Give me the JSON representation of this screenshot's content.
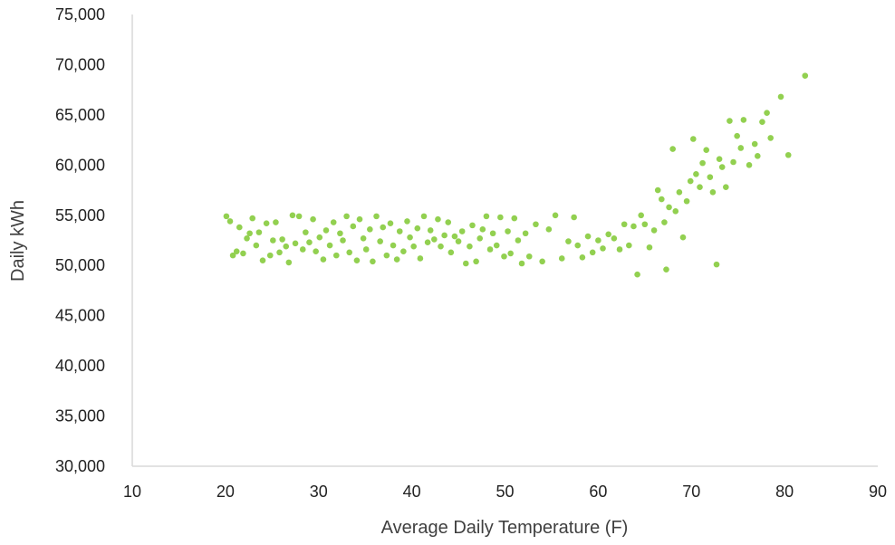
{
  "chart_data": {
    "type": "scatter",
    "title": "",
    "xlabel": "Average Daily Temperature (F)",
    "ylabel": "Daily kWh",
    "xlim": [
      10,
      90
    ],
    "ylim": [
      30000,
      75000
    ],
    "x_ticks": [
      10,
      20,
      30,
      40,
      50,
      60,
      70,
      80,
      90
    ],
    "x_tick_labels": [
      "10",
      "20",
      "30",
      "40",
      "50",
      "60",
      "70",
      "80",
      "90"
    ],
    "y_ticks": [
      30000,
      35000,
      40000,
      45000,
      50000,
      55000,
      60000,
      65000,
      70000,
      75000
    ],
    "y_tick_labels": [
      "30,000",
      "35,000",
      "40,000",
      "45,000",
      "50,000",
      "55,000",
      "60,000",
      "65,000",
      "70,000",
      "75,000"
    ],
    "grid": false,
    "legend": "none",
    "marker_color": "#92d050",
    "series": [
      {
        "points": [
          [
            20.1,
            54900
          ],
          [
            20.5,
            54400
          ],
          [
            20.8,
            51000
          ],
          [
            21.2,
            51400
          ],
          [
            21.5,
            53800
          ],
          [
            21.9,
            51200
          ],
          [
            22.3,
            52700
          ],
          [
            22.6,
            53200
          ],
          [
            22.9,
            54700
          ],
          [
            23.3,
            52000
          ],
          [
            23.6,
            53300
          ],
          [
            24.0,
            50500
          ],
          [
            24.4,
            54200
          ],
          [
            24.8,
            51000
          ],
          [
            25.1,
            52500
          ],
          [
            25.4,
            54300
          ],
          [
            25.8,
            51300
          ],
          [
            26.1,
            52600
          ],
          [
            26.5,
            51900
          ],
          [
            26.8,
            50300
          ],
          [
            27.2,
            55000
          ],
          [
            27.5,
            52200
          ],
          [
            27.9,
            54900
          ],
          [
            28.3,
            51600
          ],
          [
            28.6,
            53300
          ],
          [
            29.0,
            52300
          ],
          [
            29.4,
            54600
          ],
          [
            29.7,
            51400
          ],
          [
            30.1,
            52800
          ],
          [
            30.5,
            50600
          ],
          [
            30.8,
            53500
          ],
          [
            31.2,
            52000
          ],
          [
            31.6,
            54300
          ],
          [
            31.9,
            51000
          ],
          [
            32.3,
            53200
          ],
          [
            32.6,
            52500
          ],
          [
            33.0,
            54900
          ],
          [
            33.3,
            51300
          ],
          [
            33.7,
            53900
          ],
          [
            34.1,
            50500
          ],
          [
            34.4,
            54600
          ],
          [
            34.8,
            52700
          ],
          [
            35.1,
            51600
          ],
          [
            35.5,
            53600
          ],
          [
            35.8,
            50400
          ],
          [
            36.2,
            54900
          ],
          [
            36.6,
            52400
          ],
          [
            36.9,
            53800
          ],
          [
            37.3,
            51000
          ],
          [
            37.7,
            54200
          ],
          [
            38.0,
            52000
          ],
          [
            38.4,
            50600
          ],
          [
            38.7,
            53400
          ],
          [
            39.1,
            51400
          ],
          [
            39.5,
            54400
          ],
          [
            39.8,
            52800
          ],
          [
            40.2,
            51900
          ],
          [
            40.6,
            53700
          ],
          [
            40.9,
            50700
          ],
          [
            41.3,
            54900
          ],
          [
            41.7,
            52300
          ],
          [
            42.0,
            53500
          ],
          [
            42.4,
            52600
          ],
          [
            42.8,
            54600
          ],
          [
            43.1,
            51900
          ],
          [
            43.5,
            53000
          ],
          [
            43.9,
            54300
          ],
          [
            44.2,
            51300
          ],
          [
            44.6,
            52900
          ],
          [
            45.0,
            52400
          ],
          [
            45.4,
            53400
          ],
          [
            45.8,
            50200
          ],
          [
            46.2,
            51900
          ],
          [
            46.5,
            54000
          ],
          [
            46.9,
            50400
          ],
          [
            47.3,
            52700
          ],
          [
            47.6,
            53600
          ],
          [
            48.0,
            54900
          ],
          [
            48.4,
            51600
          ],
          [
            48.7,
            53200
          ],
          [
            49.1,
            52000
          ],
          [
            49.5,
            54800
          ],
          [
            49.9,
            50900
          ],
          [
            50.3,
            53400
          ],
          [
            50.6,
            51200
          ],
          [
            51.0,
            54700
          ],
          [
            51.4,
            52500
          ],
          [
            51.8,
            50200
          ],
          [
            52.2,
            53200
          ],
          [
            52.6,
            50900
          ],
          [
            53.3,
            54100
          ],
          [
            54.0,
            50400
          ],
          [
            54.7,
            53600
          ],
          [
            55.4,
            55000
          ],
          [
            56.1,
            50700
          ],
          [
            56.8,
            52400
          ],
          [
            57.4,
            54800
          ],
          [
            57.8,
            52000
          ],
          [
            58.3,
            50800
          ],
          [
            58.9,
            52900
          ],
          [
            59.4,
            51300
          ],
          [
            60.0,
            52500
          ],
          [
            60.5,
            51700
          ],
          [
            61.1,
            53100
          ],
          [
            61.7,
            52700
          ],
          [
            62.3,
            51600
          ],
          [
            62.8,
            54100
          ],
          [
            63.3,
            52000
          ],
          [
            63.8,
            53900
          ],
          [
            64.2,
            49100
          ],
          [
            64.6,
            55000
          ],
          [
            65.0,
            54100
          ],
          [
            65.5,
            51800
          ],
          [
            66.0,
            53500
          ],
          [
            66.4,
            57500
          ],
          [
            66.8,
            56600
          ],
          [
            67.1,
            54300
          ],
          [
            67.3,
            49600
          ],
          [
            67.6,
            55800
          ],
          [
            68.0,
            61600
          ],
          [
            68.3,
            55400
          ],
          [
            68.7,
            57300
          ],
          [
            69.1,
            52800
          ],
          [
            69.5,
            56400
          ],
          [
            69.9,
            58400
          ],
          [
            70.2,
            62600
          ],
          [
            70.5,
            59100
          ],
          [
            70.9,
            57800
          ],
          [
            71.2,
            60200
          ],
          [
            71.6,
            61500
          ],
          [
            72.0,
            58800
          ],
          [
            72.3,
            57300
          ],
          [
            72.7,
            50100
          ],
          [
            73.0,
            60600
          ],
          [
            73.3,
            59800
          ],
          [
            73.7,
            57800
          ],
          [
            74.1,
            64400
          ],
          [
            74.5,
            60300
          ],
          [
            74.9,
            62900
          ],
          [
            75.3,
            61700
          ],
          [
            75.6,
            64500
          ],
          [
            76.2,
            60000
          ],
          [
            76.8,
            62100
          ],
          [
            77.1,
            60900
          ],
          [
            77.6,
            64300
          ],
          [
            78.1,
            65200
          ],
          [
            78.5,
            62700
          ],
          [
            79.6,
            66800
          ],
          [
            80.4,
            61000
          ],
          [
            82.2,
            68900
          ]
        ]
      }
    ]
  }
}
